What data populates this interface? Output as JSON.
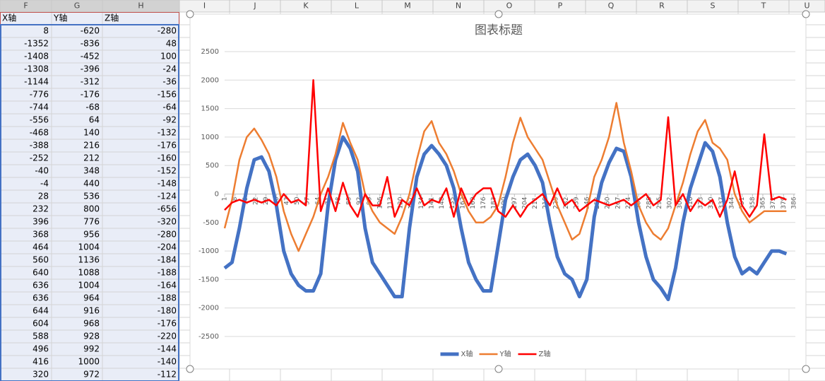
{
  "spreadsheet": {
    "column_headers": [
      "F",
      "G",
      "H",
      "I",
      "J",
      "K",
      "L",
      "M",
      "N",
      "O",
      "P",
      "Q",
      "R",
      "S",
      "T",
      "U"
    ],
    "table": {
      "header": [
        "X轴",
        "Y轴",
        "Z轴"
      ],
      "rows": [
        [
          8,
          -620,
          -280
        ],
        [
          -1352,
          -836,
          48
        ],
        [
          -1408,
          -452,
          100
        ],
        [
          -1308,
          -396,
          -24
        ],
        [
          -1144,
          -312,
          -36
        ],
        [
          -776,
          -176,
          -156
        ],
        [
          -744,
          -68,
          -64
        ],
        [
          -556,
          64,
          -92
        ],
        [
          -468,
          140,
          -132
        ],
        [
          -388,
          216,
          -176
        ],
        [
          -252,
          212,
          -160
        ],
        [
          -40,
          348,
          -152
        ],
        [
          -4,
          440,
          -148
        ],
        [
          28,
          536,
          -124
        ],
        [
          232,
          800,
          -656
        ],
        [
          396,
          776,
          -320
        ],
        [
          368,
          956,
          -280
        ],
        [
          464,
          1004,
          -204
        ],
        [
          560,
          1136,
          -184
        ],
        [
          640,
          1088,
          -188
        ],
        [
          636,
          1004,
          -164
        ],
        [
          636,
          964,
          -188
        ],
        [
          644,
          916,
          -180
        ],
        [
          604,
          968,
          -176
        ],
        [
          588,
          928,
          -220
        ],
        [
          496,
          992,
          -144
        ],
        [
          416,
          1000,
          -140
        ],
        [
          320,
          972,
          -112
        ]
      ]
    }
  },
  "chart_data": {
    "type": "line",
    "title": "图表标题",
    "legend": "bottom",
    "grid": true,
    "x": [
      1,
      6,
      11,
      16,
      21,
      26,
      31,
      36,
      41,
      46,
      51,
      56,
      61,
      66,
      71,
      76,
      81,
      86,
      91,
      96,
      101,
      106,
      111,
      116,
      121,
      126,
      131,
      136,
      141,
      146,
      151,
      156,
      161,
      166,
      171,
      176,
      181,
      186,
      191,
      196,
      201,
      206,
      211,
      216,
      221,
      226,
      231,
      236,
      241,
      246,
      251,
      256,
      261,
      266,
      271,
      276,
      281,
      286,
      291,
      296,
      301,
      306,
      311,
      316,
      321,
      326,
      331,
      336,
      341,
      346,
      351,
      356,
      361,
      366,
      371,
      376,
      381
    ],
    "xlim": [
      1,
      387
    ],
    "xticks": [
      1,
      8,
      15,
      22,
      29,
      36,
      43,
      50,
      57,
      64,
      71,
      78,
      85,
      92,
      99,
      106,
      113,
      120,
      127,
      134,
      141,
      148,
      155,
      162,
      169,
      176,
      183,
      190,
      197,
      204,
      211,
      218,
      225,
      232,
      239,
      246,
      253,
      260,
      267,
      274,
      281,
      288,
      295,
      302,
      309,
      316,
      323,
      330,
      337,
      344,
      351,
      358,
      365,
      372,
      379,
      386
    ],
    "ylim": [
      -2500,
      2500
    ],
    "yticks": [
      -2500,
      -2000,
      -1500,
      -1000,
      -500,
      0,
      500,
      1000,
      1500,
      2000,
      2500
    ],
    "series": [
      {
        "name": "X轴",
        "color": "#4472c4",
        "values": [
          -1300,
          -1200,
          -600,
          100,
          600,
          650,
          400,
          -200,
          -1000,
          -1400,
          -1600,
          -1700,
          -1700,
          -1400,
          -200,
          600,
          1000,
          800,
          400,
          -600,
          -1200,
          -1400,
          -1600,
          -1800,
          -1800,
          -600,
          300,
          700,
          850,
          700,
          500,
          100,
          -600,
          -1200,
          -1500,
          -1700,
          -1700,
          -900,
          -100,
          300,
          600,
          700,
          500,
          200,
          -500,
          -1100,
          -1400,
          -1500,
          -1800,
          -1500,
          -400,
          200,
          550,
          800,
          750,
          300,
          -500,
          -1100,
          -1500,
          -1650,
          -1850,
          -1300,
          -500,
          100,
          500,
          900,
          750,
          300,
          -500,
          -1100,
          -1400,
          -1300,
          -1400,
          -1200,
          -1000,
          -1000,
          -1050
        ]
      },
      {
        "name": "Y轴",
        "color": "#ed7d31",
        "values": [
          -600,
          -100,
          600,
          1000,
          1150,
          950,
          700,
          300,
          -300,
          -700,
          -1000,
          -700,
          -400,
          0,
          300,
          700,
          1250,
          900,
          600,
          0,
          -300,
          -500,
          -600,
          -700,
          -400,
          0,
          600,
          1100,
          1280,
          900,
          700,
          400,
          0,
          -300,
          -500,
          -500,
          -400,
          -200,
          300,
          900,
          1340,
          1000,
          800,
          600,
          200,
          -200,
          -500,
          -800,
          -700,
          -300,
          300,
          600,
          1000,
          1600,
          900,
          400,
          -200,
          -500,
          -700,
          -800,
          -600,
          -200,
          200,
          700,
          1100,
          1300,
          900,
          800,
          600,
          0,
          -300,
          -500,
          -400,
          -300,
          -300,
          -300,
          -300
        ]
      },
      {
        "name": "Z轴",
        "color": "#ff0000",
        "values": [
          -280,
          -150,
          -100,
          -150,
          -100,
          -150,
          -100,
          -200,
          0,
          -150,
          -100,
          -200,
          2000,
          -300,
          100,
          -300,
          200,
          -200,
          -400,
          0,
          -200,
          -200,
          300,
          -400,
          -100,
          -200,
          100,
          -200,
          -100,
          -150,
          100,
          -400,
          100,
          -200,
          0,
          100,
          100,
          -300,
          -400,
          -200,
          -400,
          -200,
          -100,
          0,
          -200,
          100,
          -200,
          -100,
          -300,
          -200,
          -100,
          -150,
          -200,
          -150,
          -100,
          -200,
          -100,
          0,
          -200,
          -100,
          1350,
          -200,
          0,
          -300,
          -100,
          -200,
          -100,
          -400,
          -100,
          400,
          -200,
          -400,
          -200,
          1050,
          -100,
          -50,
          -100
        ]
      }
    ]
  }
}
